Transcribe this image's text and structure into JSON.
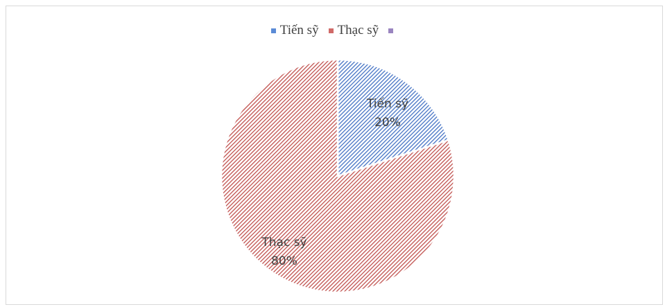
{
  "chart_data": {
    "type": "pie",
    "title": "",
    "categories": [
      "Tiến sỹ",
      "Thạc sỹ",
      ""
    ],
    "values": [
      20,
      80,
      0
    ],
    "percent_labels": [
      "20%",
      "80%"
    ],
    "colors": [
      "#4472c4",
      "#c0504d",
      "#8064a2"
    ],
    "legend": {
      "position": "top",
      "entries": [
        "Tiến sỹ",
        "Thạc sỹ",
        ""
      ]
    },
    "data_labels": true
  }
}
